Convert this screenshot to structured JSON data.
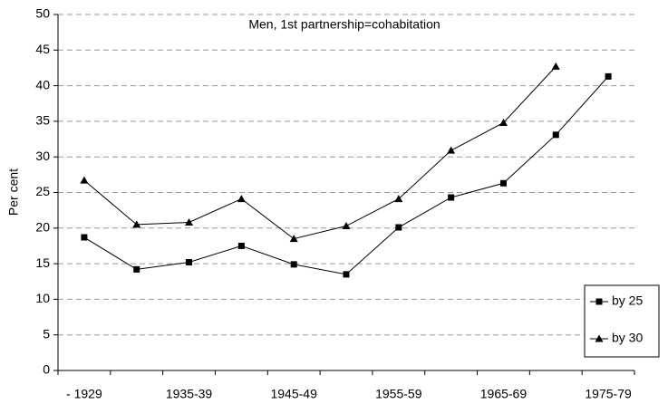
{
  "chart_data": {
    "type": "line",
    "title": "Men, 1st partnership=cohabitation",
    "y_label": "Per cent",
    "categories": [
      "- 1929",
      null,
      "1935-39",
      null,
      "1945-49",
      null,
      "1955-59",
      null,
      "1965-69",
      null,
      "1975-79"
    ],
    "series": [
      {
        "name": "by 25",
        "color": "#000000",
        "marker": "square",
        "values": [
          18.7,
          14.2,
          15.2,
          17.5,
          14.9,
          13.5,
          20.1,
          24.3,
          26.3,
          33.1,
          41.3
        ]
      },
      {
        "name": "by 30",
        "color": "#000000",
        "marker": "triangle",
        "values": [
          26.7,
          20.5,
          20.8,
          24.1,
          18.5,
          20.3,
          24.1,
          30.9,
          34.8,
          42.7,
          null
        ]
      }
    ],
    "ylim": [
      0,
      50
    ],
    "yticks": [
      0,
      5,
      10,
      15,
      20,
      25,
      30,
      35,
      40,
      45,
      50
    ],
    "grid": true,
    "legend": "lower right"
  }
}
